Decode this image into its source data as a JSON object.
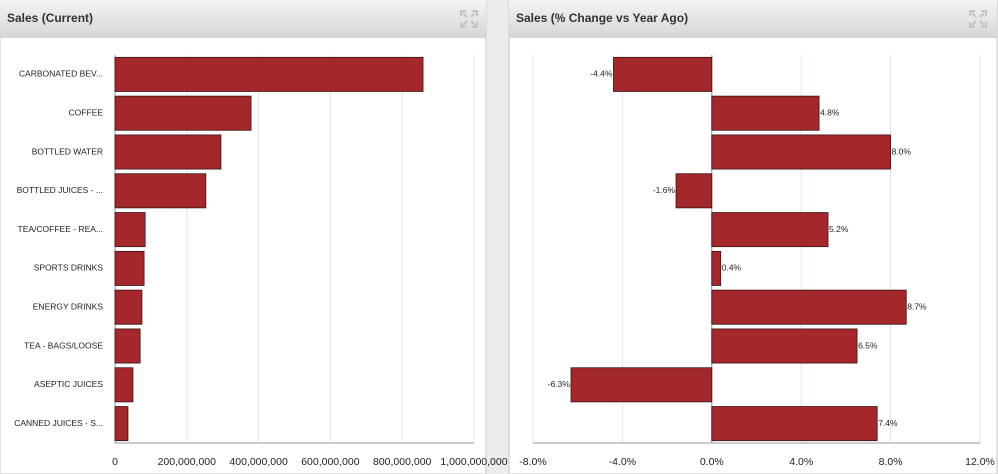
{
  "chart_data": [
    {
      "type": "bar",
      "orientation": "horizontal",
      "title": "Sales (Current)",
      "categories": [
        "CARBONATED BEV...",
        "COFFEE",
        "BOTTLED WATER",
        "BOTTLED JUICES - ...",
        "TEA/COFFEE - REA...",
        "SPORTS DRINKS",
        "ENERGY DRINKS",
        "TEA - BAGS/LOOSE",
        "ASEPTIC JUICES",
        "CANNED JUICES - S..."
      ],
      "values": [
        858000000,
        379000000,
        295000000,
        253000000,
        84000000,
        81000000,
        75000000,
        70000000,
        50000000,
        36000000
      ],
      "color": "#a4282b",
      "grid": true,
      "xlim": [
        0,
        1000000000
      ],
      "xticks": [
        0,
        {
          "value": 200000000,
          "label": "200,000,000"
        },
        {
          "value": 400000000,
          "label": "400,000,000"
        },
        {
          "value": 600000000,
          "label": "600,000,000"
        },
        {
          "value": 800000000,
          "label": "800,000,000"
        },
        {
          "value": 1000000000,
          "label": "1,000,000,000"
        }
      ]
    },
    {
      "type": "bar",
      "orientation": "horizontal",
      "title": "Sales (% Change vs Year Ago)",
      "values": [
        -4.4,
        4.8,
        8.0,
        -1.6,
        5.2,
        0.4,
        8.7,
        6.5,
        -6.3,
        7.4
      ],
      "value_labels": [
        "-4.4%",
        "4.8%",
        "8.0%",
        "-1.6%",
        "5.2%",
        "0.4%",
        "8.7%",
        "6.5%",
        "-6.3%",
        "7.4%"
      ],
      "color": "#a4282b",
      "grid": true,
      "xlim": [
        -8,
        12
      ],
      "xticks": [
        {
          "value": -8,
          "label": "-8.0%"
        },
        {
          "value": -4,
          "label": "-4.0%"
        },
        {
          "value": 0,
          "label": "0.0%"
        },
        {
          "value": 4,
          "label": "4.0%"
        },
        {
          "value": 8,
          "label": "8.0%"
        },
        {
          "value": 12,
          "label": "12.0%"
        }
      ]
    }
  ]
}
